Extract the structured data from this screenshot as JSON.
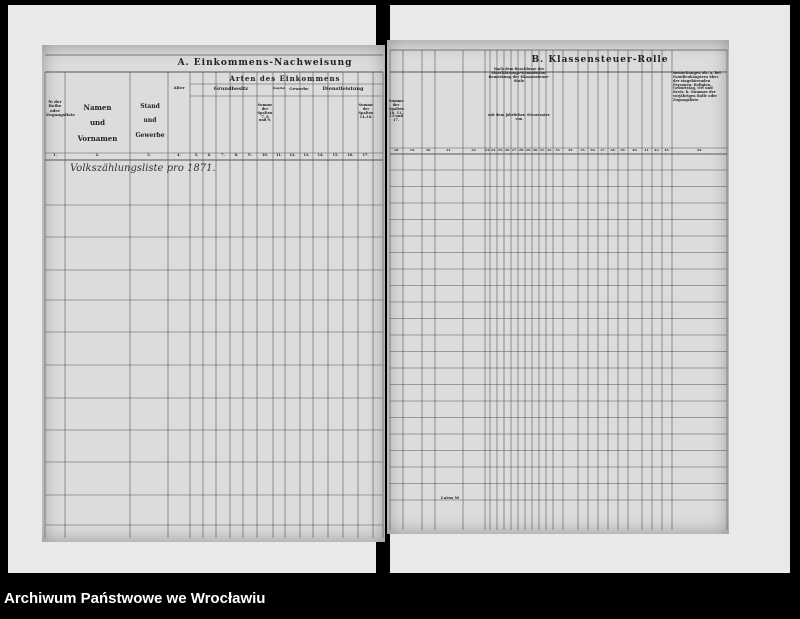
{
  "footer": {
    "archive_name": "Archiwum Państwowe we Wrocławiu"
  },
  "left_page": {
    "title": "A. Einkommens-Nachweisung",
    "subtitle": "Arten des Einkommens",
    "groups": [
      "Grundbesitz",
      "Kapital",
      "Gewerbe",
      "Dienstleistung"
    ],
    "col_number": "№ der Reihe oder Zugangsliste",
    "col_name": "Namen und Vornamen",
    "col_stand": "Stand und Gewerbe",
    "col_alter": "Alter",
    "col_sum_a": "Summe der Spalten 7, 8 und 9.",
    "col_sum_b": "Summe der Spalten 14–16.",
    "column_numbers": [
      "1.",
      "2.",
      "3.",
      "4.",
      "5.",
      "6.",
      "7.",
      "8.",
      "9.",
      "10.",
      "11.",
      "12.",
      "13.",
      "14.",
      "15.",
      "16.",
      "17."
    ],
    "handwritten_note": "Volkszählungsliste pro 1871."
  },
  "right_page": {
    "title": "B. Klassensteuer-Rolle",
    "col_remarks": "Bemerkungen als: a. bei Familienhäuptern über der eingehörenden Personen: Religion, Geburtstag, Ort und Kreis. b. Nummer der vorjährigen Rolle oder Zugangsliste.",
    "col_sum": "Summe der Spalten 10, 11, 13 und 17.",
    "col_assess": "Nach dem Beschlusse der Einschätzungs-Kommission: Bemerkung der Klassensteuer-Stufe",
    "col_assess_sub": "mit dem jährlichen Steuersatze von",
    "column_numbers": [
      "18.",
      "19.",
      "20.",
      "21.",
      "22.",
      "23.",
      "24.",
      "25.",
      "26.",
      "27.",
      "28.",
      "29.",
      "30.",
      "31.",
      "32.",
      "33.",
      "34.",
      "35.",
      "36.",
      "37.",
      "38.",
      "39.",
      "40.",
      "41.",
      "42.",
      "43.",
      "44.",
      "45.",
      "46."
    ],
    "latus_label": "Latus M"
  }
}
